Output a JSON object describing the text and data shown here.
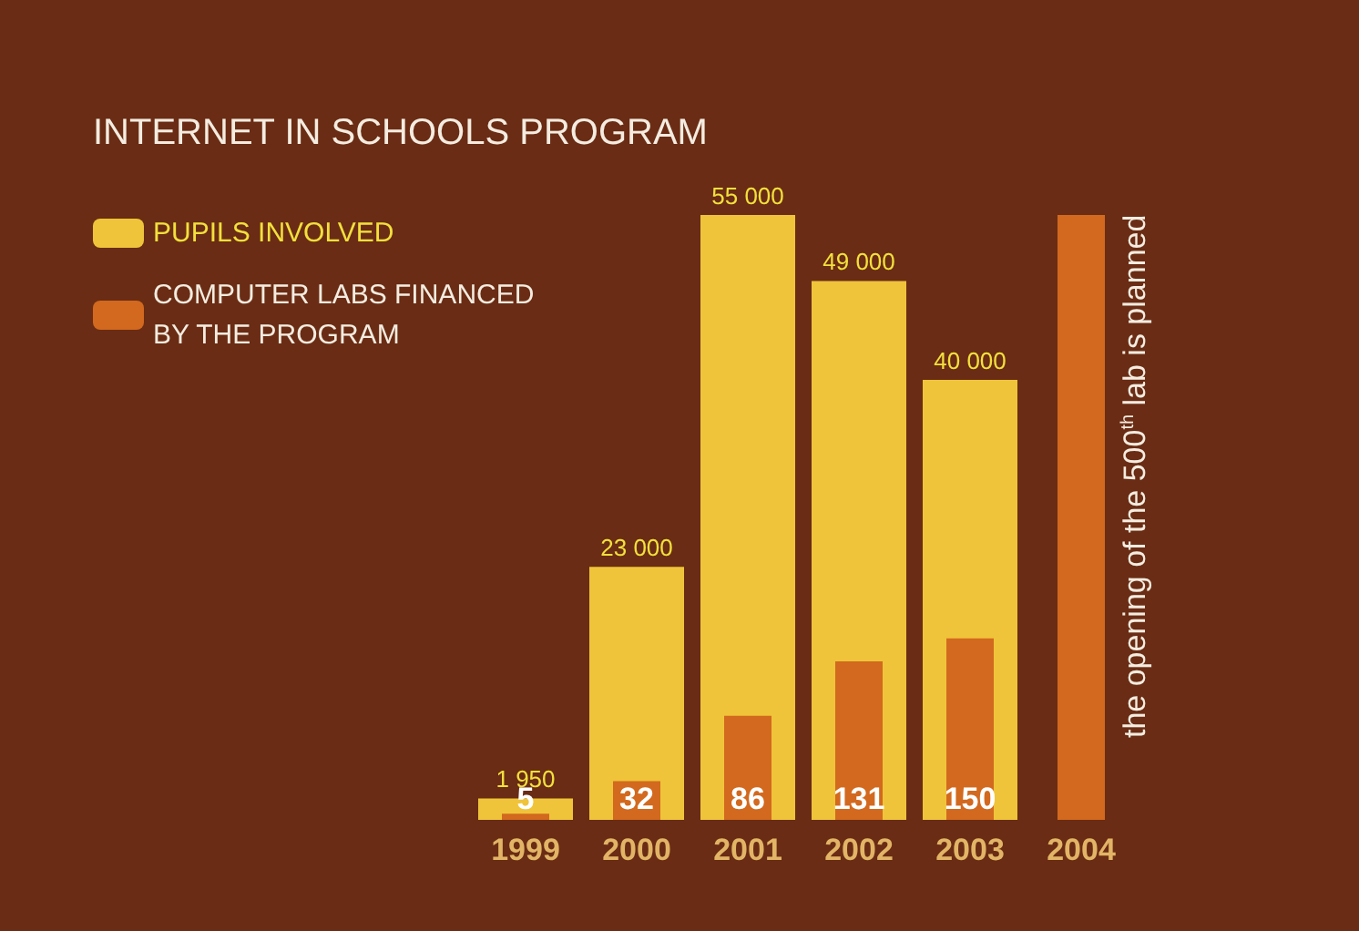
{
  "chart_data": {
    "type": "bar",
    "title": "INTERNET IN SCHOOLS PROGRAM",
    "categories": [
      "1999",
      "2000",
      "2001",
      "2002",
      "2003",
      "2004"
    ],
    "series": [
      {
        "name": "PUPILS INVOLVED",
        "color": "#f0c43a",
        "values": [
          1950,
          23000,
          55000,
          49000,
          40000,
          null
        ],
        "value_labels": [
          "1 950",
          "23 000",
          "55 000",
          "49 000",
          "40 000",
          null
        ]
      },
      {
        "name": "COMPUTER LABS FINANCED\nBY THE PROGRAM",
        "color": "#d2691e",
        "axis": "y2",
        "values": [
          5,
          32,
          86,
          131,
          150,
          500
        ],
        "value_labels": [
          "5",
          "32",
          "86",
          "131",
          "150",
          null
        ]
      }
    ],
    "tick_labels": "x",
    "legend": "top left",
    "annotations": [
      {
        "text": "the opening of the 500$^{th}$ lab is planned",
        "x": "2004",
        "y": 500
      }
    ]
  }
}
